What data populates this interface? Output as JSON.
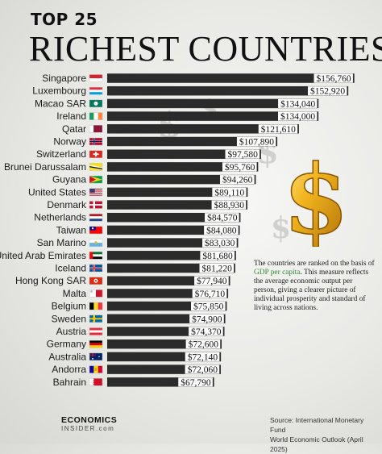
{
  "header": {
    "kicker": "TOP 25",
    "title": "RICHEST COUNTRIES"
  },
  "note": {
    "text_before": "The countries are ranked on the basis of ",
    "highlight": "GDP per capita",
    "text_after": ". This measure reflects the average economic output per person, giving a clearer picture of individual prosperity and standard of living across nations."
  },
  "footer": {
    "brand_top": "ECONOMICS",
    "brand_bottom": "INSIDER.com",
    "source_line1": "Source: International Monetary Fund",
    "source_line2": "World Economic Outlook (April 2025)"
  },
  "colors": {
    "bar": "#2b2b2b",
    "highlight": "#2f8a32",
    "gold": "#e8a317"
  },
  "chart_data": {
    "type": "bar",
    "orientation": "horizontal",
    "title": "RICHEST COUNTRIES",
    "xlim": [
      0,
      160000
    ],
    "grid": false,
    "categories": [
      "Singapore",
      "Luxembourg",
      "Macao SAR",
      "Ireland",
      "Qatar",
      "Norway",
      "Switzerland",
      "Brunei Darussalam",
      "Guyana",
      "United States",
      "Denmark",
      "Netherlands",
      "Taiwan",
      "San Marino",
      "United Arab Emirates",
      "Iceland",
      "Hong Kong SAR",
      "Malta",
      "Belgium",
      "Sweden",
      "Austria",
      "Germany",
      "Australia",
      "Andorra",
      "Bahrain"
    ],
    "values": [
      156760,
      152920,
      134040,
      134000,
      121610,
      107890,
      97580,
      95760,
      94260,
      89110,
      88930,
      84570,
      84080,
      83030,
      81680,
      81220,
      77940,
      76710,
      75850,
      74900,
      74370,
      72600,
      72140,
      72060,
      67790
    ],
    "value_labels": [
      "$156,760",
      "$152,920",
      "$134,040",
      "$134,000",
      "$121,610",
      "$107,890",
      "$97,580",
      "$95,760",
      "$94,260",
      "$89,110",
      "$88,930",
      "$84,570",
      "$84,080",
      "$83,030",
      "$81,680",
      "$81,220",
      "$77,940",
      "$76,710",
      "$75,850",
      "$74,900",
      "$74,370",
      "$72,600",
      "$72,140",
      "$72,060",
      "$67,790"
    ],
    "flag_icons": [
      "singapore-flag-icon",
      "luxembourg-flag-icon",
      "macao-flag-icon",
      "ireland-flag-icon",
      "qatar-flag-icon",
      "norway-flag-icon",
      "switzerland-flag-icon",
      "brunei-flag-icon",
      "guyana-flag-icon",
      "united-states-flag-icon",
      "denmark-flag-icon",
      "netherlands-flag-icon",
      "taiwan-flag-icon",
      "san-marino-flag-icon",
      "uae-flag-icon",
      "iceland-flag-icon",
      "hong-kong-flag-icon",
      "malta-flag-icon",
      "belgium-flag-icon",
      "sweden-flag-icon",
      "austria-flag-icon",
      "germany-flag-icon",
      "australia-flag-icon",
      "andorra-flag-icon",
      "bahrain-flag-icon"
    ]
  }
}
